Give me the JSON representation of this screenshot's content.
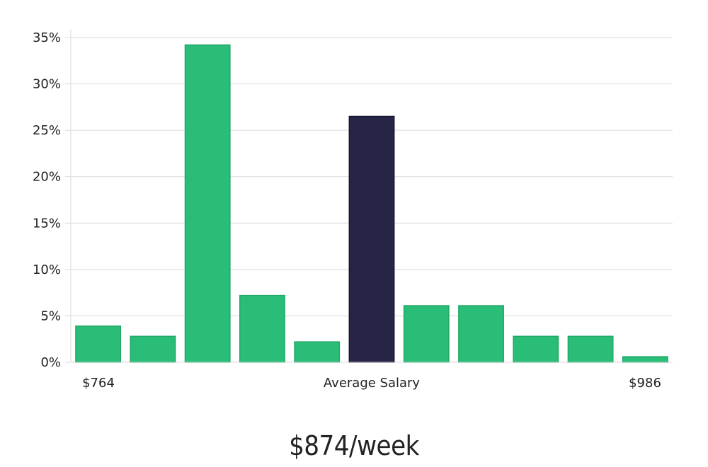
{
  "chart_data": {
    "type": "bar",
    "values": [
      3.9,
      2.8,
      34.2,
      7.2,
      2.2,
      26.5,
      6.1,
      6.1,
      2.8,
      2.8,
      0.6
    ],
    "highlight_index": 5,
    "ylim": [
      0,
      35
    ],
    "yticks": [
      "0%",
      "5%",
      "10%",
      "15%",
      "20%",
      "25%",
      "30%",
      "35%"
    ],
    "ytick_values": [
      0,
      5,
      10,
      15,
      20,
      25,
      30,
      35
    ],
    "x_labels": {
      "left": "$764",
      "center": "Average Salary",
      "right": "$986"
    },
    "grid": true,
    "colors": {
      "bar": "#2abd77",
      "bar_edge": "#22a866",
      "highlight": "#272545",
      "highlight_edge": "#161530"
    }
  },
  "headline": "$874/week"
}
